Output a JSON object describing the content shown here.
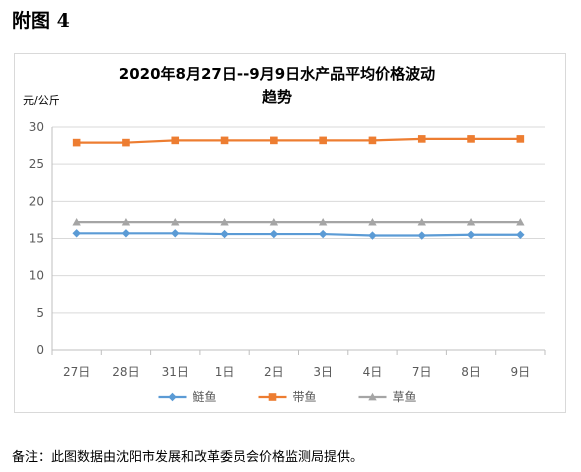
{
  "figure_label": "附图 4",
  "note": "备注：此图数据由沈阳市发展和改革委员会价格监测局提供。",
  "chart_data": {
    "type": "line",
    "title_line1": "2020年8月27日--9月9日水产品平均价格波动",
    "title_line2": "趋势",
    "ylabel": "元/公斤",
    "xlabel": "",
    "ylim": [
      0,
      30
    ],
    "yticks": [
      "0",
      "5",
      "10",
      "15",
      "20",
      "25",
      "30"
    ],
    "grid": true,
    "legend_position": "bottom",
    "categories": [
      "27日",
      "28日",
      "31日",
      "1日",
      "2日",
      "3日",
      "4日",
      "7日",
      "8日",
      "9日"
    ],
    "series": [
      {
        "name": "鲢鱼",
        "color": "#5b9bd5",
        "marker": "diamond",
        "values": [
          15.7,
          15.7,
          15.7,
          15.6,
          15.6,
          15.6,
          15.4,
          15.4,
          15.5,
          15.5
        ]
      },
      {
        "name": "带鱼",
        "color": "#ed7d31",
        "marker": "square",
        "values": [
          27.9,
          27.9,
          28.2,
          28.2,
          28.2,
          28.2,
          28.2,
          28.4,
          28.4,
          28.4
        ]
      },
      {
        "name": "草鱼",
        "color": "#a5a5a5",
        "marker": "triangle",
        "values": [
          17.2,
          17.2,
          17.2,
          17.2,
          17.2,
          17.2,
          17.2,
          17.2,
          17.2,
          17.2
        ]
      }
    ]
  }
}
